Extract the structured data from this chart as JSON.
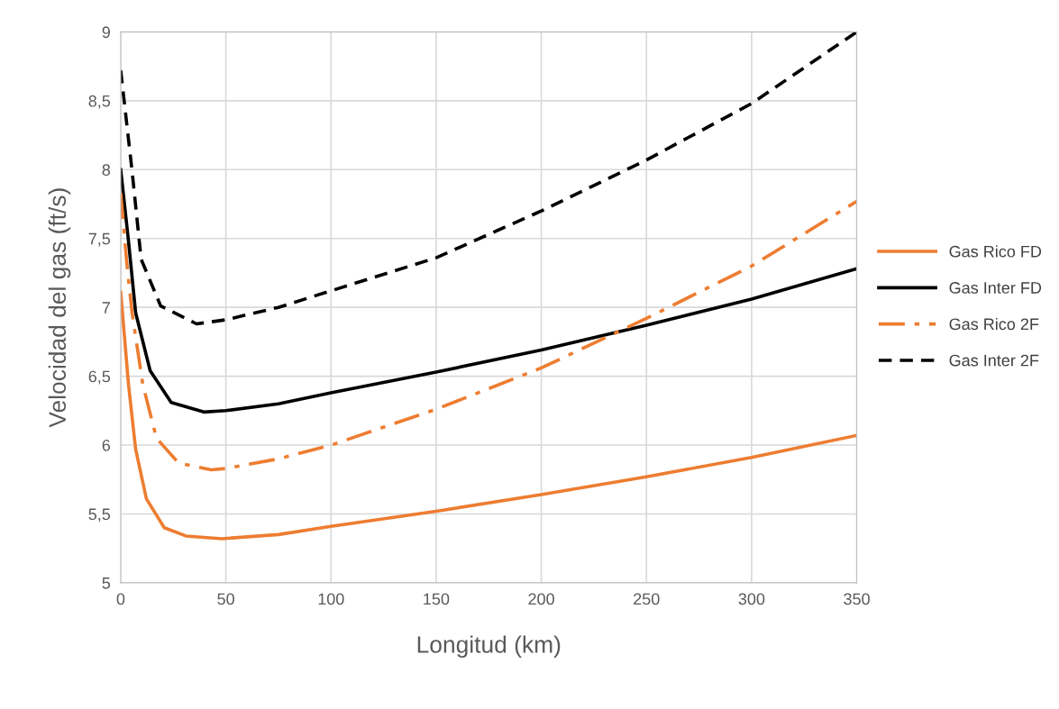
{
  "chart_data": {
    "type": "line",
    "xlabel": "Longitud (km)",
    "ylabel": "Velocidad del gas (ft/s)",
    "xlim": [
      0,
      350
    ],
    "xticks": [
      0,
      50,
      100,
      150,
      200,
      250,
      300,
      350
    ],
    "ylim": [
      5,
      9
    ],
    "yticks": [
      5,
      {
        "value": 5.5,
        "label": "5,5"
      },
      6,
      {
        "value": 6.5,
        "label": "6,5"
      },
      7,
      {
        "value": 7.5,
        "label": "7,5"
      },
      8,
      {
        "value": 8.5,
        "label": "8,5"
      },
      9
    ],
    "grid": true,
    "legend": "right",
    "marker": "none",
    "series": [
      {
        "name": "Gas Rico FD",
        "color": "#ed7d31",
        "line_style": "solid",
        "x": [
          0,
          3.7,
          7.1,
          12.2,
          20.7,
          31,
          48,
          75,
          100,
          150,
          200,
          250,
          300,
          350
        ],
        "values": [
          7.11,
          6.44,
          5.97,
          5.61,
          5.4,
          5.34,
          5.32,
          5.35,
          5.41,
          5.52,
          5.64,
          5.77,
          5.91,
          6.07
        ]
      },
      {
        "name": "Gas Inter FD",
        "color": "#000000",
        "line_style": "solid",
        "x": [
          0,
          3.7,
          7.1,
          14,
          24,
          39.5,
          50,
          75,
          100,
          150,
          200,
          250,
          300,
          350
        ],
        "values": [
          8.0,
          7.48,
          6.96,
          6.54,
          6.31,
          6.24,
          6.25,
          6.3,
          6.38,
          6.53,
          6.69,
          6.87,
          7.06,
          7.28
        ]
      },
      {
        "name": "Gas Rico 2F",
        "color": "#ed7d31",
        "line_style": "dashdot",
        "x": [
          0,
          2.9,
          5.4,
          10.5,
          17,
          27.5,
          43,
          50,
          75,
          100,
          150,
          200,
          250,
          300,
          350
        ],
        "values": [
          7.83,
          7.32,
          6.96,
          6.44,
          6.05,
          5.87,
          5.82,
          5.83,
          5.9,
          6.0,
          6.26,
          6.56,
          6.92,
          7.3,
          7.77
        ]
      },
      {
        "name": "Gas Inter 2F",
        "color": "#000000",
        "line_style": "dashed",
        "x": [
          0,
          5.4,
          9.7,
          19,
          36,
          50,
          75,
          100,
          150,
          200,
          250,
          300,
          350
        ],
        "values": [
          8.72,
          7.99,
          7.35,
          7.01,
          6.88,
          6.91,
          7.0,
          7.12,
          7.36,
          7.7,
          8.07,
          8.48,
          9.0
        ]
      }
    ]
  }
}
